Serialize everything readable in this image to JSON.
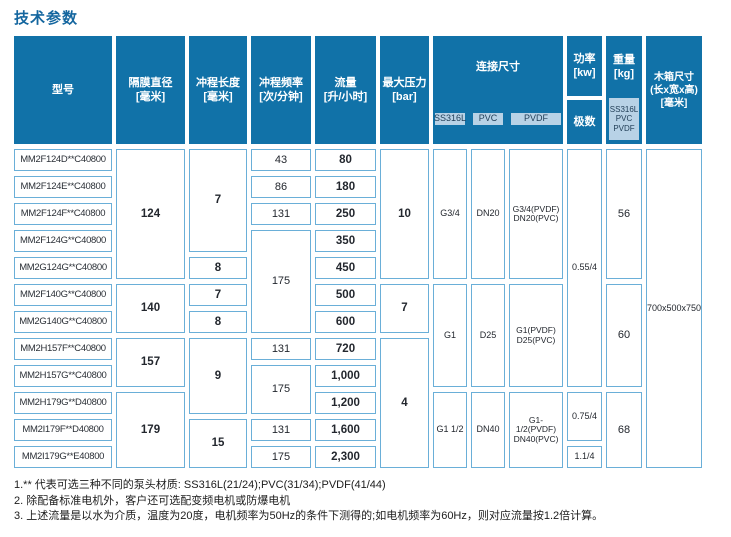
{
  "title": "技术参数",
  "colors": {
    "header_blue": "#1172a8",
    "subcell_light_blue": "#b8d2e6",
    "cell_border_blue": "#6aafd8",
    "title_blue": "#14669f"
  },
  "table": {
    "headers": {
      "model": "型号",
      "diaphragm": "隔膜直径\n[毫米]",
      "stroke_length": "冲程长度\n[毫米]",
      "stroke_frequency": "冲程频率\n[次/分钟]",
      "flow": "流量\n[升/小时]",
      "max_pressure": "最大压力\n[bar]",
      "connection": "连接尺寸",
      "connection_materials": [
        "SS316L",
        "PVC",
        "PVDF"
      ],
      "power": "功率\n[kw]",
      "poles": "极数",
      "weight": "重量\n[kg]",
      "weight_materials": "SS316L\nPVC\nPVDF",
      "box": "木箱尺寸\n(长x宽x高)\n[毫米]"
    },
    "models": [
      "MM2F124D**C40800",
      "MM2F124E**C40800",
      "MM2F124F**C40800",
      "MM2F124G**C40800",
      "MM2G124G**C40800",
      "MM2F140G**C40800",
      "MM2G140G**C40800",
      "MM2H157F**C40800",
      "MM2H157G**C40800",
      "MM2H179G**D40800",
      "MM2I179F**D40800",
      "MM2I179G**E40800"
    ],
    "diaphragm_cells": [
      "124",
      "140",
      "157",
      "179"
    ],
    "stroke_length_cells": [
      "7",
      "8",
      "7",
      "8",
      "9",
      "15"
    ],
    "frequency_cells": [
      "43",
      "86",
      "131",
      "175",
      "131",
      "175",
      "131",
      "175"
    ],
    "flow_cells": [
      "80",
      "180",
      "250",
      "350",
      "450",
      "500",
      "600",
      "720",
      "1,000",
      "1,200",
      "1,600",
      "2,300"
    ],
    "pressure_cells": [
      "10",
      "7",
      "4"
    ],
    "ss316l_cells": [
      "G3/4",
      "G1",
      "G1 1/2"
    ],
    "pvc_cells": [
      "DN20",
      "D25",
      "DN40"
    ],
    "pvdf_cells": [
      "G3/4(PVDF)\nDN20(PVC)",
      "G1(PVDF)\nD25(PVC)",
      "G1-1/2(PVDF)\nDN40(PVC)"
    ],
    "power_cells": [
      "0.55/4",
      "0.75/4",
      "1.1/4"
    ],
    "weight_cells": [
      "56",
      "60",
      "68"
    ],
    "box_cells": [
      "700x500x750"
    ]
  },
  "footnotes": [
    "1.** 代表可选三种不同的泵头材质: SS316L(21/24);PVC(31/34);PVDF(41/44)",
    "2. 除配备标准电机外，客户还可选配变频电机或防爆电机",
    "3. 上述流量是以水为介质，温度为20度，电机频率为50Hz的条件下测得的;如电机频率为60Hz，则对应流量按1.2倍计算。"
  ]
}
